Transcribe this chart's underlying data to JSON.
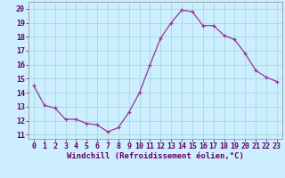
{
  "x": [
    0,
    1,
    2,
    3,
    4,
    5,
    6,
    7,
    8,
    9,
    10,
    11,
    12,
    13,
    14,
    15,
    16,
    17,
    18,
    19,
    20,
    21,
    22,
    23
  ],
  "y": [
    14.5,
    13.1,
    12.9,
    12.1,
    12.1,
    11.8,
    11.7,
    11.2,
    11.5,
    12.6,
    14.0,
    16.0,
    17.9,
    19.0,
    19.9,
    19.8,
    18.8,
    18.8,
    18.1,
    17.8,
    16.8,
    15.6,
    15.1,
    14.8
  ],
  "line_color": "#993399",
  "marker": "+",
  "bg_color": "#cceeff",
  "grid_color": "#aadddd",
  "xlabel": "Windchill (Refroidissement éolien,°C)",
  "ylabel_ticks": [
    11,
    12,
    13,
    14,
    15,
    16,
    17,
    18,
    19,
    20
  ],
  "xlim": [
    -0.5,
    23.5
  ],
  "ylim": [
    10.7,
    20.5
  ],
  "xlabel_fontsize": 6.5,
  "tick_fontsize": 6.0
}
